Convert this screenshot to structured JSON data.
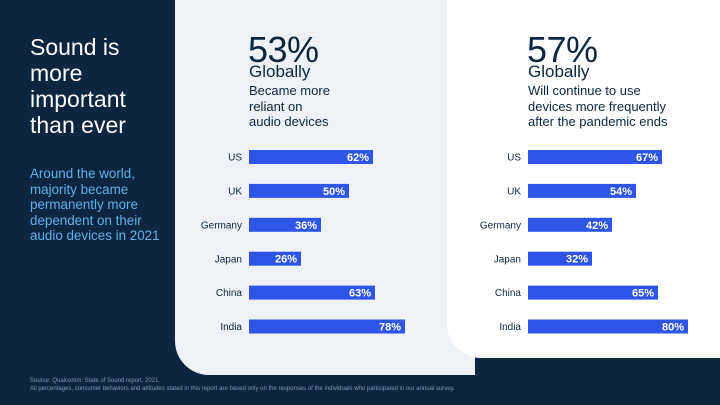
{
  "slide": {
    "title": "Sound is more important than ever",
    "subtitle": "Around the world, majority became permanently more dependent on their audio devices in 2021",
    "footer_line1": "Source: Qualcomm: State of Sound report, 2021.",
    "footer_line2": "All percentages, consumer behaviors and attitudes stated in this report are based only on the responses of the individuals who participated in our annual survey."
  },
  "colors": {
    "bar": "#2f55e8",
    "bar_text": "#ffffff",
    "label": "#0c2540",
    "background": "#0c2540",
    "accent_text": "#5fb3e6",
    "panel_a": "#eef1f6",
    "panel_b": "#ffffff"
  },
  "stats": [
    {
      "pct": "53%",
      "label": "Globally",
      "desc": [
        "Became more",
        "reliant on",
        "audio devices"
      ]
    },
    {
      "pct": "57%",
      "label": "Globally",
      "desc": [
        "Will continue to use",
        "devices more frequently",
        "after the pandemic ends"
      ]
    }
  ],
  "chart_data": [
    {
      "type": "bar",
      "orientation": "horizontal",
      "title": "Became more reliant on audio devices",
      "categories": [
        "US",
        "UK",
        "Germany",
        "Japan",
        "China",
        "India"
      ],
      "values": [
        62,
        50,
        36,
        26,
        63,
        78
      ],
      "value_labels": [
        "62%",
        "50%",
        "36%",
        "26%",
        "63%",
        "78%"
      ],
      "xlim": [
        0,
        100
      ]
    },
    {
      "type": "bar",
      "orientation": "horizontal",
      "title": "Will continue to use devices more frequently after the pandemic ends",
      "categories": [
        "US",
        "UK",
        "Germany",
        "Japan",
        "China",
        "India"
      ],
      "values": [
        67,
        54,
        42,
        32,
        65,
        80
      ],
      "value_labels": [
        "67%",
        "54%",
        "42%",
        "32%",
        "65%",
        "80%"
      ],
      "xlim": [
        0,
        100
      ]
    }
  ]
}
